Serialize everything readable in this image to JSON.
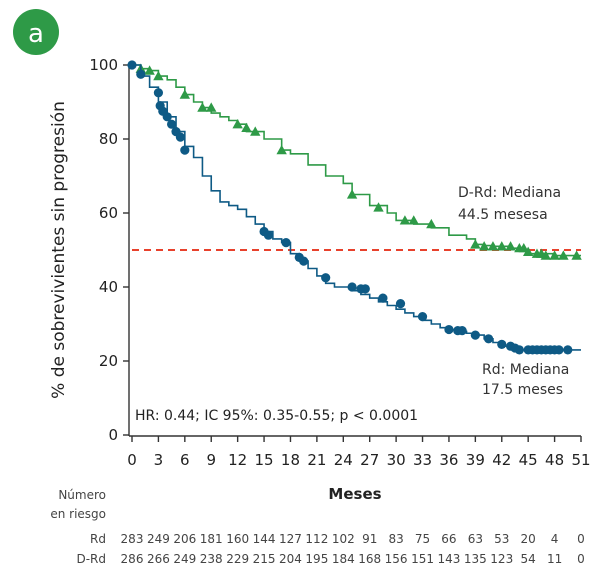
{
  "panel_label": "a",
  "colors": {
    "badge": "#2e9a47",
    "rd": "#0e5a85",
    "drd": "#2e9a47",
    "median_line": "#e8412c",
    "axis": "#333333"
  },
  "annotations": {
    "drd_line1": "D-Rd: Mediana",
    "drd_line2": "44.5 mesesa",
    "rd_line1": "Rd: Mediana",
    "rd_line2": "17.5 meses",
    "stats": "HR: 0.44; IC 95%: 0.35-0.55; p < 0.0001"
  },
  "risk_table": {
    "header_line1": "Número",
    "header_line2": "en riesgo",
    "rows": [
      {
        "label": "Rd",
        "values": [
          "283",
          "249",
          "206",
          "181",
          "160",
          "144",
          "127",
          "112",
          "102",
          "91",
          "83",
          "75",
          "66",
          "63",
          "53",
          "20",
          "4",
          "0"
        ]
      },
      {
        "label": "D-Rd",
        "values": [
          "286",
          "266",
          "249",
          "238",
          "229",
          "215",
          "204",
          "195",
          "184",
          "168",
          "156",
          "151",
          "143",
          "135",
          "123",
          "54",
          "11",
          "0"
        ]
      }
    ]
  },
  "chart_data": {
    "type": "line",
    "xlabel": "Meses",
    "ylabel": "% de sobrevivientes sin progresión",
    "xlim": [
      0,
      51
    ],
    "ylim": [
      0,
      100
    ],
    "xticks": [
      0,
      3,
      6,
      9,
      12,
      15,
      18,
      21,
      24,
      27,
      30,
      33,
      36,
      39,
      42,
      45,
      48,
      51
    ],
    "yticks": [
      0,
      20,
      40,
      60,
      80,
      100
    ],
    "reference_line": {
      "y": 50,
      "style": "dashed"
    },
    "series": [
      {
        "name": "D-Rd",
        "marker": "triangle",
        "points": [
          [
            0,
            100
          ],
          [
            1,
            99
          ],
          [
            2,
            98.5
          ],
          [
            3,
            97
          ],
          [
            4,
            96
          ],
          [
            5,
            94
          ],
          [
            6,
            92
          ],
          [
            7,
            90
          ],
          [
            8,
            88.5
          ],
          [
            9,
            87
          ],
          [
            10,
            86
          ],
          [
            11,
            85
          ],
          [
            12,
            84
          ],
          [
            13,
            82
          ],
          [
            15,
            80
          ],
          [
            17,
            77
          ],
          [
            18,
            76
          ],
          [
            20,
            73
          ],
          [
            22,
            70
          ],
          [
            24,
            68
          ],
          [
            25,
            65
          ],
          [
            27,
            62
          ],
          [
            29,
            60
          ],
          [
            30,
            58
          ],
          [
            32,
            57
          ],
          [
            34,
            56
          ],
          [
            36,
            54
          ],
          [
            38,
            53
          ],
          [
            39,
            51.5
          ],
          [
            40,
            51.2
          ],
          [
            41,
            51
          ],
          [
            42,
            51
          ],
          [
            43,
            50.5
          ],
          [
            44,
            50
          ],
          [
            45,
            49
          ],
          [
            46,
            49
          ],
          [
            47,
            49
          ],
          [
            48,
            48.5
          ],
          [
            49,
            48.5
          ],
          [
            51,
            48.5
          ]
        ],
        "censored": [
          [
            1,
            99
          ],
          [
            2,
            98.5
          ],
          [
            3,
            97
          ],
          [
            6,
            92
          ],
          [
            8,
            88.5
          ],
          [
            9,
            88.5
          ],
          [
            12,
            84
          ],
          [
            13,
            83
          ],
          [
            14,
            82
          ],
          [
            17,
            77
          ],
          [
            25,
            65
          ],
          [
            28,
            61.5
          ],
          [
            31,
            58
          ],
          [
            32,
            58
          ],
          [
            34,
            57
          ],
          [
            39,
            51.5
          ],
          [
            40,
            51
          ],
          [
            41,
            51
          ],
          [
            42,
            51
          ],
          [
            43,
            51
          ],
          [
            44,
            50.5
          ],
          [
            44.5,
            50.5
          ],
          [
            45,
            49.5
          ],
          [
            46,
            49
          ],
          [
            46.5,
            49
          ],
          [
            47,
            48.5
          ],
          [
            48,
            48.5
          ],
          [
            49,
            48.5
          ],
          [
            50.5,
            48.5
          ]
        ]
      },
      {
        "name": "Rd",
        "marker": "circle",
        "points": [
          [
            0,
            100
          ],
          [
            1,
            97
          ],
          [
            2,
            94
          ],
          [
            3,
            90
          ],
          [
            4,
            86
          ],
          [
            5,
            82
          ],
          [
            6,
            78
          ],
          [
            7,
            75
          ],
          [
            8,
            70
          ],
          [
            9,
            66
          ],
          [
            10,
            63
          ],
          [
            11,
            62
          ],
          [
            12,
            61
          ],
          [
            13,
            59
          ],
          [
            14,
            57
          ],
          [
            15,
            55
          ],
          [
            16,
            53
          ],
          [
            17,
            52
          ],
          [
            18,
            49
          ],
          [
            19,
            47
          ],
          [
            20,
            45
          ],
          [
            21,
            43
          ],
          [
            22,
            41
          ],
          [
            23,
            40
          ],
          [
            24,
            40
          ],
          [
            25,
            39
          ],
          [
            26,
            38
          ],
          [
            27,
            37
          ],
          [
            28,
            36
          ],
          [
            29,
            35
          ],
          [
            30,
            34
          ],
          [
            31,
            33
          ],
          [
            32,
            32
          ],
          [
            33,
            31
          ],
          [
            34,
            30
          ],
          [
            35,
            29
          ],
          [
            36,
            28.5
          ],
          [
            37,
            28
          ],
          [
            38,
            27.5
          ],
          [
            39,
            27
          ],
          [
            40,
            26
          ],
          [
            41,
            25
          ],
          [
            42,
            24
          ],
          [
            43,
            23.5
          ],
          [
            44,
            23
          ],
          [
            45,
            23
          ],
          [
            48,
            23
          ],
          [
            50,
            23
          ],
          [
            51,
            23
          ]
        ],
        "censored": [
          [
            0,
            100
          ],
          [
            1,
            97.5
          ],
          [
            3,
            92.5
          ],
          [
            3.2,
            89
          ],
          [
            3.5,
            87.5
          ],
          [
            4,
            86
          ],
          [
            4.5,
            84
          ],
          [
            5,
            82
          ],
          [
            5.5,
            80.5
          ],
          [
            6,
            77
          ],
          [
            15,
            55
          ],
          [
            15.5,
            54
          ],
          [
            17.5,
            52
          ],
          [
            19,
            48
          ],
          [
            19.5,
            47
          ],
          [
            22,
            42.5
          ],
          [
            25,
            40
          ],
          [
            26,
            39.5
          ],
          [
            26.5,
            39.5
          ],
          [
            28.5,
            37
          ],
          [
            30.5,
            35.5
          ],
          [
            33,
            32
          ],
          [
            36,
            28.5
          ],
          [
            37,
            28.2
          ],
          [
            37.5,
            28.2
          ],
          [
            39,
            27
          ],
          [
            40.5,
            26
          ],
          [
            42,
            24.5
          ],
          [
            43,
            24
          ],
          [
            43.5,
            23.5
          ],
          [
            44,
            23
          ],
          [
            45,
            23
          ],
          [
            45.5,
            23
          ],
          [
            46,
            23
          ],
          [
            46.5,
            23
          ],
          [
            47,
            23
          ],
          [
            47.5,
            23
          ],
          [
            48,
            23
          ],
          [
            48.5,
            23
          ],
          [
            49.5,
            23
          ]
        ]
      }
    ]
  }
}
